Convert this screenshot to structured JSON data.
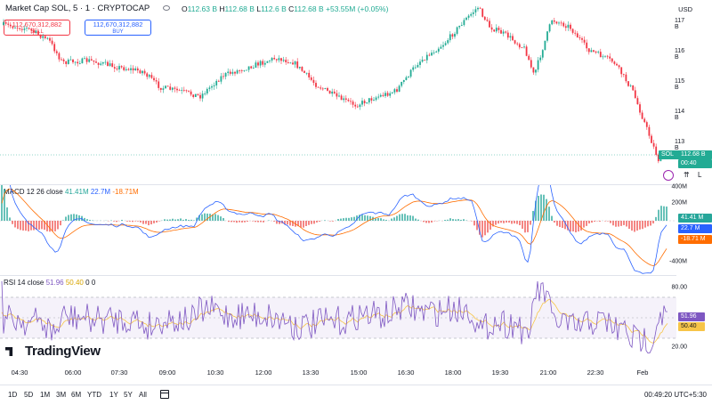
{
  "header": {
    "title": "Market Cap SOL, 5 · 1 · CRYPTOCAP",
    "ohlc": [
      {
        "k": "O",
        "v": "112.63 B"
      },
      {
        "k": "H",
        "v": "112.68 B"
      },
      {
        "k": "L",
        "v": "112.6 B"
      },
      {
        "k": "C",
        "v": "112.68 B"
      },
      {
        "k": "",
        "v": "+53.55M (+0.05%)"
      }
    ],
    "sell_value": "112,670,312,882",
    "sell_label": "SELL",
    "buy_value": "112,670,312,882",
    "buy_label": "BUY"
  },
  "price_axis": {
    "currency": "USD",
    "ticks": [
      "117 B",
      "116 B",
      "115 B",
      "114 B",
      "113 B"
    ],
    "symbol_tag": "SOL",
    "last_price": "112.68 B",
    "countdown": "00:40",
    "colors": {
      "up": "#22ab94",
      "down": "#f23645"
    }
  },
  "macd": {
    "label": "MACD 12 26 close",
    "hist": "41.41M",
    "macd": "22.7M",
    "signal": "-18.71M",
    "ticks": [
      "400M",
      "200M",
      "-400M"
    ],
    "tag_hist": "41.41 M",
    "tag_macd": "22.7 M",
    "tag_signal": "-18.71 M",
    "colors": {
      "macd": "#2962ff",
      "signal": "#ff6d00",
      "hist_up": "#26a69a",
      "hist_down": "#ef5350"
    }
  },
  "rsi": {
    "label": "RSI 14 close",
    "rsi": "51.96",
    "ma": "50.40",
    "extra1": "0",
    "extra2": "0",
    "ticks": [
      "80.00",
      "20.00"
    ],
    "tag_rsi": "51.96",
    "tag_ma": "50.40",
    "colors": {
      "rsi": "#7e57c2",
      "ma": "#f7c548"
    }
  },
  "watermark": "TradingView",
  "time_axis": [
    "04:30",
    "06:00",
    "07:30",
    "09:00",
    "10:30",
    "12:00",
    "13:30",
    "15:00",
    "16:30",
    "18:00",
    "19:30",
    "21:00",
    "22:30",
    "Feb"
  ],
  "ranges": [
    "1D",
    "5D",
    "1M",
    "3M",
    "6M",
    "YTD",
    "1Y",
    "5Y",
    "All"
  ],
  "clock": "00:49:20 UTC+5:30",
  "icons": [
    "symbol-icon",
    "eye-icon",
    "calendar-icon",
    "alert-icon"
  ]
}
